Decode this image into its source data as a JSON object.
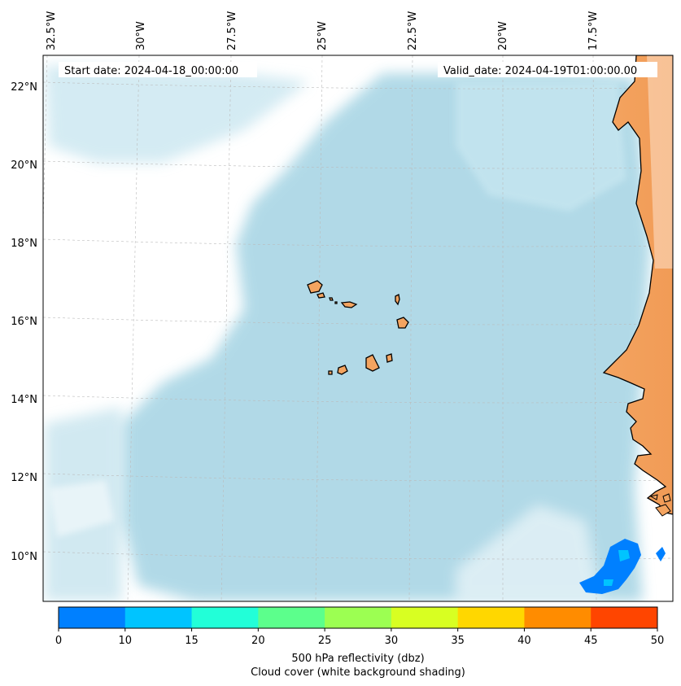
{
  "header": {
    "start_date": "Start date: 2024-04-18_00:00:00",
    "valid_date": "Valid_date: 2024-04-19T01:00:00.00"
  },
  "map": {
    "lon_labels": [
      "32.5°W",
      "30°W",
      "27.5°W",
      "25°W",
      "22.5°W",
      "20°W",
      "17.5°W"
    ],
    "lat_labels": [
      "22°N",
      "20°N",
      "18°N",
      "16°N",
      "14°N",
      "12°N",
      "10°N"
    ],
    "colors": {
      "land": "#f4a460",
      "cloud": "#add8e6",
      "coastline": "#000000",
      "grid": "#cccccc"
    }
  },
  "colorbar": {
    "ticks": [
      "0",
      "10",
      "15",
      "20",
      "25",
      "30",
      "35",
      "40",
      "45",
      "50"
    ],
    "colors": [
      "#0080ff",
      "#00c4ff",
      "#22ffd8",
      "#5cff8c",
      "#9cff52",
      "#d8ff22",
      "#ffd700",
      "#ff8c00",
      "#ff4500"
    ],
    "label_line1": "500 hPa reflectivity (dbz)",
    "label_line2": "Cloud cover (white background shading)"
  }
}
